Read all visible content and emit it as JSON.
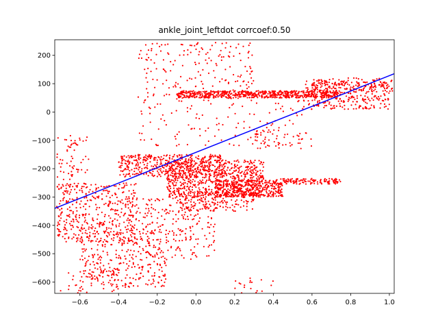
{
  "chart_data": {
    "type": "scatter",
    "title": "ankle_joint_leftdot corrcoef:0.50",
    "xlabel": "",
    "ylabel": "",
    "xlim": [
      -0.73,
      1.025
    ],
    "ylim": [
      -640,
      255
    ],
    "xticks": [
      -0.6,
      -0.4,
      -0.2,
      0.0,
      0.2,
      0.4,
      0.6,
      0.8,
      1.0
    ],
    "xtick_labels": [
      "−0.6",
      "−0.4",
      "−0.2",
      "0.0",
      "0.2",
      "0.4",
      "0.6",
      "0.8",
      "1.0"
    ],
    "yticks": [
      200,
      100,
      0,
      -100,
      -200,
      -300,
      -400,
      -500,
      -600
    ],
    "ytick_labels": [
      "200",
      "100",
      "0",
      "−100",
      "−200",
      "−300",
      "−400",
      "−500",
      "−600"
    ],
    "grid": false,
    "scatter_color": "#ff0000",
    "fit_line_color": "#0000ff",
    "fit_line": {
      "x": [
        -0.73,
        1.025
      ],
      "y": [
        -340,
        135
      ]
    },
    "clusters": [
      {
        "x": [
          -0.1,
          0.75
        ],
        "y": [
          50,
          75
        ],
        "n": 650
      },
      {
        "x": [
          0.55,
          1.0
        ],
        "y": [
          10,
          110
        ],
        "n": 280
      },
      {
        "x": [
          0.6,
          1.02
        ],
        "y": [
          70,
          120
        ],
        "n": 120
      },
      {
        "x": [
          -0.3,
          0.3
        ],
        "y": [
          40,
          245
        ],
        "n": 200
      },
      {
        "x": [
          -0.4,
          0.15
        ],
        "y": [
          -230,
          -150
        ],
        "n": 450
      },
      {
        "x": [
          -0.15,
          0.35
        ],
        "y": [
          -300,
          -170
        ],
        "n": 700
      },
      {
        "x": [
          0.1,
          0.45
        ],
        "y": [
          -300,
          -240
        ],
        "n": 380
      },
      {
        "x": [
          0.4,
          0.75
        ],
        "y": [
          -255,
          -235
        ],
        "n": 130
      },
      {
        "x": [
          -0.72,
          -0.3
        ],
        "y": [
          -460,
          -250
        ],
        "n": 450
      },
      {
        "x": [
          -0.6,
          -0.15
        ],
        "y": [
          -620,
          -420
        ],
        "n": 300
      },
      {
        "x": [
          -0.35,
          0.1
        ],
        "y": [
          -520,
          -300
        ],
        "n": 250
      },
      {
        "x": [
          -0.1,
          0.3
        ],
        "y": [
          -350,
          -280
        ],
        "n": 180
      },
      {
        "x": [
          -0.3,
          0.55
        ],
        "y": [
          -120,
          40
        ],
        "n": 120
      },
      {
        "x": [
          0.3,
          0.6
        ],
        "y": [
          -130,
          -60
        ],
        "n": 50
      },
      {
        "x": [
          0.2,
          0.4
        ],
        "y": [
          -640,
          -580
        ],
        "n": 18
      },
      {
        "x": [
          -0.7,
          -0.4
        ],
        "y": [
          -640,
          -560
        ],
        "n": 40
      },
      {
        "x": [
          -0.72,
          -0.55
        ],
        "y": [
          -240,
          -80
        ],
        "n": 60
      }
    ]
  }
}
